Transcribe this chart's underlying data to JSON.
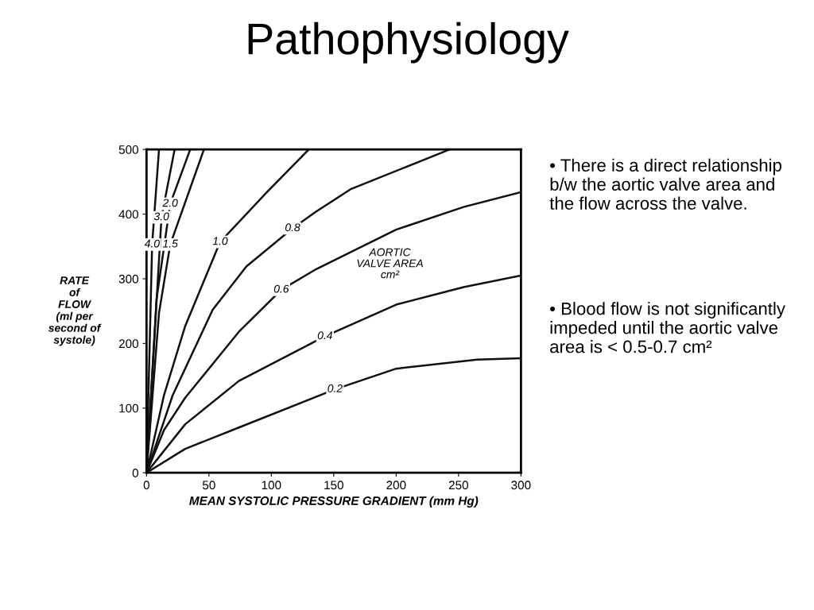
{
  "chart_data": {
    "type": "line",
    "title": "Pathophysiology",
    "xlabel": "MEAN SYSTOLIC PRESSURE GRADIENT (mm Hg)",
    "ylabel": "RATE\nof\nFLOW\n(ml per\nsecond of\nsystole)",
    "xlim": [
      0,
      300
    ],
    "xticks": [
      0,
      50,
      100,
      150,
      200,
      250,
      300
    ],
    "ylim": [
      0,
      500
    ],
    "yticks": [
      0,
      100,
      200,
      300,
      400,
      500
    ],
    "grid": false,
    "legend": false,
    "marker": "none",
    "line_style": "solid",
    "series": [
      {
        "name": "4.0",
        "color": "#111111",
        "x": [
          0,
          4.5,
          10
        ],
        "values": [
          0,
          353,
          500
        ]
      },
      {
        "name": "3.0",
        "color": "#111111",
        "x": [
          0,
          12,
          22.5
        ],
        "values": [
          0,
          395,
          500
        ]
      },
      {
        "name": "2.0",
        "color": "#111111",
        "x": [
          0,
          8,
          19,
          35
        ],
        "values": [
          0,
          268,
          416,
          500
        ]
      },
      {
        "name": "1.5",
        "color": "#111111",
        "x": [
          0,
          10,
          19,
          46
        ],
        "values": [
          0,
          247,
          353,
          500
        ]
      },
      {
        "name": "1.0",
        "color": "#111111",
        "x": [
          0,
          14,
          31,
          59,
          96,
          130
        ],
        "values": [
          0,
          120,
          227,
          357,
          433,
          500
        ]
      },
      {
        "name": "0.8",
        "color": "#111111",
        "x": [
          0,
          21,
          53,
          80,
          117,
          136,
          164,
          243
        ],
        "values": [
          0,
          120,
          252,
          319,
          378,
          404,
          439,
          500
        ]
      },
      {
        "name": "0.6",
        "color": "#111111",
        "x": [
          0,
          14,
          31,
          74,
          108,
          136,
          200,
          254,
          300
        ],
        "values": [
          0,
          66,
          116,
          218,
          283,
          315,
          376,
          411,
          434
        ]
      },
      {
        "name": "0.4",
        "color": "#111111",
        "x": [
          0,
          31,
          74,
          143,
          200,
          254,
          300
        ],
        "values": [
          0,
          75,
          142,
          211,
          260,
          287,
          305
        ]
      },
      {
        "name": "0.2",
        "color": "#111111",
        "x": [
          0,
          31,
          74,
          151,
          200,
          265,
          300
        ],
        "values": [
          0,
          37,
          70,
          129,
          161,
          175,
          177
        ]
      }
    ],
    "annotations": [
      "AORTIC\nVALVE AREA\ncm²",
      "• There is a direct relationship b/w the aortic valve area and the flow across the valve.",
      "• Blood flow is not significantly impeded until the aortic valve area is < 0.5-0.7 cm²"
    ]
  }
}
